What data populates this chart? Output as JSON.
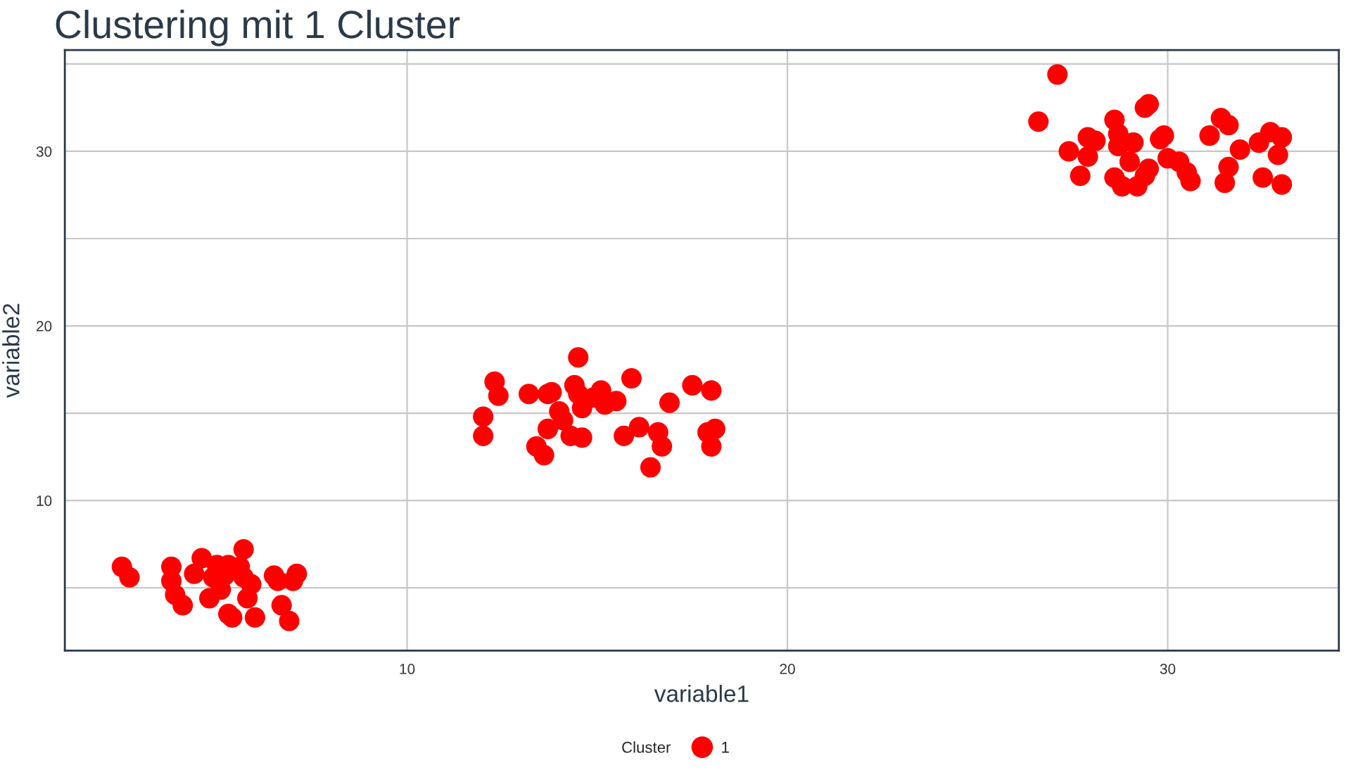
{
  "chart_data": {
    "type": "scatter",
    "title": "Clustering mit 1 Cluster",
    "xlabel": "variable1",
    "ylabel": "variable2",
    "legend_title": "Cluster",
    "xlim": [
      1.0,
      34.5
    ],
    "ylim": [
      1.4,
      35.8
    ],
    "xticks": [
      10,
      20,
      30
    ],
    "yticks": [
      {
        "value": 5,
        "label": null
      },
      10,
      {
        "value": 15,
        "label": null
      },
      20,
      {
        "value": 25,
        "label": null
      },
      30,
      {
        "value": 35,
        "label": null
      }
    ],
    "grid": true,
    "legend": "bottom",
    "marker": "circle",
    "series": [
      {
        "name": "1",
        "color": "#ff0000",
        "x": [
          2.5,
          2.7,
          3.8,
          3.8,
          3.9,
          4.1,
          4.4,
          4.6,
          4.9,
          5.0,
          5.2,
          5.1,
          4.8,
          5.3,
          5.6,
          5.7,
          5.7,
          5.9,
          5.8,
          6.0,
          6.5,
          6.6,
          7.0,
          7.1,
          6.7,
          6.9,
          5.3,
          5.4,
          12.3,
          12.4,
          12.0,
          12.0,
          13.2,
          13.7,
          13.8,
          14.4,
          14.5,
          14.5,
          14.9,
          15.1,
          15.2,
          15.5,
          15.9,
          14.6,
          14.0,
          14.1,
          13.7,
          14.3,
          14.6,
          13.4,
          13.6,
          15.7,
          16.1,
          16.6,
          16.7,
          16.4,
          16.9,
          17.5,
          18.0,
          17.9,
          18.1,
          18.0,
          26.6,
          29.5,
          29.4,
          28.6,
          31.4,
          31.6,
          27.4,
          27.9,
          28.1,
          27.9,
          28.7,
          28.7,
          29.1,
          29.0,
          27.7,
          29.8,
          29.9,
          30.0,
          30.3,
          30.5,
          30.6,
          31.1,
          31.9,
          32.4,
          32.7,
          33.0,
          32.9,
          31.6,
          31.5,
          32.5,
          33.0,
          28.6,
          28.8,
          29.2,
          29.5,
          29.4,
          27.1
        ],
        "values": [
          6.2,
          5.6,
          6.2,
          5.4,
          4.6,
          4.0,
          5.8,
          6.7,
          5.6,
          6.3,
          5.7,
          4.9,
          4.4,
          6.3,
          6.2,
          7.2,
          5.6,
          5.2,
          4.4,
          3.3,
          5.7,
          5.4,
          5.4,
          5.8,
          4.0,
          3.1,
          3.5,
          3.3,
          16.8,
          16.0,
          14.8,
          13.7,
          16.1,
          16.1,
          16.2,
          16.6,
          18.2,
          16.1,
          15.9,
          16.3,
          15.5,
          15.7,
          17.0,
          15.3,
          15.1,
          14.6,
          14.1,
          13.7,
          13.6,
          13.1,
          12.6,
          13.7,
          14.2,
          13.9,
          13.1,
          11.9,
          15.6,
          16.6,
          16.3,
          13.9,
          14.1,
          13.1,
          31.7,
          32.7,
          32.5,
          31.8,
          31.9,
          31.5,
          30.0,
          30.8,
          30.6,
          29.7,
          31.0,
          30.3,
          30.5,
          29.4,
          28.6,
          30.7,
          30.9,
          29.6,
          29.4,
          28.8,
          28.3,
          30.9,
          30.1,
          30.5,
          31.1,
          30.8,
          29.8,
          29.1,
          28.2,
          28.5,
          28.1,
          28.5,
          28.0,
          28.0,
          29.0,
          28.6,
          34.4
        ]
      }
    ]
  }
}
